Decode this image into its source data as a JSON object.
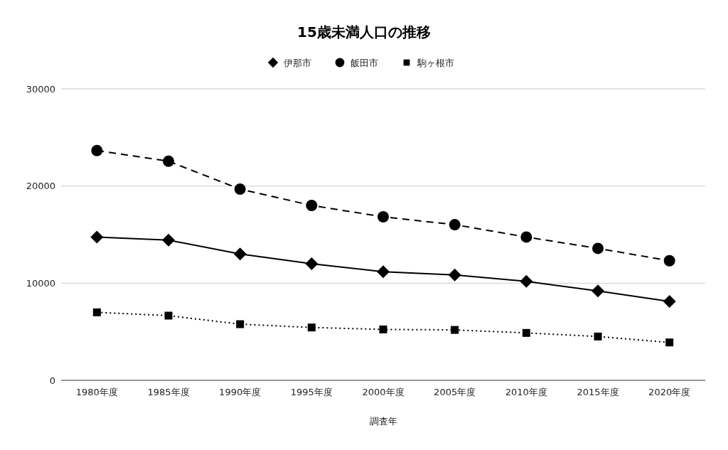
{
  "chart_data": {
    "type": "line",
    "title": "15歳未満人口の推移",
    "xlabel": "調査年",
    "categories": [
      "1980年度",
      "1985年度",
      "1990年度",
      "1995年度",
      "2000年度",
      "2005年度",
      "2010年度",
      "2015年度",
      "2020年度"
    ],
    "series": [
      {
        "name": "伊那市",
        "color": "#000000",
        "marker": "diamond",
        "line_style": "solid",
        "values": [
          14750,
          14430,
          13000,
          12000,
          11170,
          10850,
          10190,
          9200,
          8120
        ]
      },
      {
        "name": "飯田市",
        "color": "#000000",
        "marker": "circle",
        "line_style": "dashed",
        "values": [
          23650,
          22550,
          19680,
          18000,
          16830,
          16020,
          14750,
          13580,
          12310
        ]
      },
      {
        "name": "駒ヶ根市",
        "color": "#000000",
        "marker": "square",
        "line_style": "dotted",
        "values": [
          7000,
          6660,
          5780,
          5440,
          5240,
          5190,
          4880,
          4510,
          3900
        ]
      }
    ],
    "ylim": [
      0,
      30000
    ],
    "yticks": [
      0,
      10000,
      20000,
      30000
    ],
    "grid": "y",
    "legend": "top"
  }
}
